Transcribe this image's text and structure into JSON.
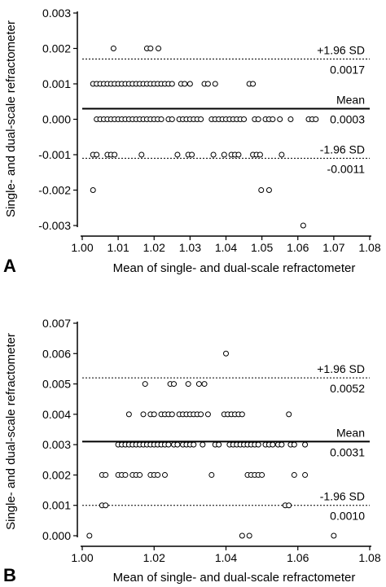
{
  "chart_data": [
    {
      "panel": "A",
      "type": "scatter",
      "xlabel": "Mean of single- and dual-scale refractometer",
      "ylabel": "Single- and dual-scale refractometer",
      "xlim": [
        1.0,
        1.08
      ],
      "ylim": [
        -0.003,
        0.003
      ],
      "x_ticks": [
        "1.00",
        "1.01",
        "1.02",
        "1.03",
        "1.04",
        "1.05",
        "1.06",
        "1.07",
        "1.08"
      ],
      "y_ticks": [
        "-0.003",
        "-0.002",
        "-0.001",
        "0.000",
        "0.001",
        "0.002",
        "0.003"
      ],
      "lines": [
        {
          "name": "+1.96 SD",
          "value_label": "0.0017",
          "y": 0.0017,
          "style": "dotted"
        },
        {
          "name": "Mean",
          "value_label": "0.0003",
          "y": 0.0003,
          "style": "solid"
        },
        {
          "name": "-1.96 SD",
          "value_label": "-0.0011",
          "y": -0.0011,
          "style": "dotted"
        }
      ],
      "points": [
        [
          1.0087,
          0.002
        ],
        [
          1.018,
          0.002
        ],
        [
          1.019,
          0.002
        ],
        [
          1.0212,
          0.002
        ],
        [
          1.003,
          0.001
        ],
        [
          1.004,
          0.001
        ],
        [
          1.005,
          0.001
        ],
        [
          1.006,
          0.001
        ],
        [
          1.007,
          0.001
        ],
        [
          1.008,
          0.001
        ],
        [
          1.009,
          0.001
        ],
        [
          1.01,
          0.001
        ],
        [
          1.011,
          0.001
        ],
        [
          1.012,
          0.001
        ],
        [
          1.013,
          0.001
        ],
        [
          1.014,
          0.001
        ],
        [
          1.015,
          0.001
        ],
        [
          1.016,
          0.001
        ],
        [
          1.017,
          0.001
        ],
        [
          1.018,
          0.001
        ],
        [
          1.019,
          0.001
        ],
        [
          1.02,
          0.001
        ],
        [
          1.021,
          0.001
        ],
        [
          1.022,
          0.001
        ],
        [
          1.023,
          0.001
        ],
        [
          1.024,
          0.001
        ],
        [
          1.025,
          0.001
        ],
        [
          1.0275,
          0.001
        ],
        [
          1.0285,
          0.001
        ],
        [
          1.03,
          0.001
        ],
        [
          1.034,
          0.001
        ],
        [
          1.035,
          0.001
        ],
        [
          1.037,
          0.001
        ],
        [
          1.0465,
          0.001
        ],
        [
          1.0475,
          0.001
        ],
        [
          1.004,
          0.0
        ],
        [
          1.005,
          0.0
        ],
        [
          1.006,
          0.0
        ],
        [
          1.007,
          0.0
        ],
        [
          1.008,
          0.0
        ],
        [
          1.009,
          0.0
        ],
        [
          1.01,
          0.0
        ],
        [
          1.011,
          0.0
        ],
        [
          1.012,
          0.0
        ],
        [
          1.013,
          0.0
        ],
        [
          1.014,
          0.0
        ],
        [
          1.015,
          0.0
        ],
        [
          1.016,
          0.0
        ],
        [
          1.017,
          0.0
        ],
        [
          1.018,
          0.0
        ],
        [
          1.019,
          0.0
        ],
        [
          1.02,
          0.0
        ],
        [
          1.021,
          0.0
        ],
        [
          1.022,
          0.0
        ],
        [
          1.024,
          0.0
        ],
        [
          1.025,
          0.0
        ],
        [
          1.027,
          0.0
        ],
        [
          1.028,
          0.0
        ],
        [
          1.029,
          0.0
        ],
        [
          1.03,
          0.0
        ],
        [
          1.031,
          0.0
        ],
        [
          1.032,
          0.0
        ],
        [
          1.033,
          0.0
        ],
        [
          1.036,
          0.0
        ],
        [
          1.037,
          0.0
        ],
        [
          1.038,
          0.0
        ],
        [
          1.039,
          0.0
        ],
        [
          1.04,
          0.0
        ],
        [
          1.041,
          0.0
        ],
        [
          1.042,
          0.0
        ],
        [
          1.043,
          0.0
        ],
        [
          1.044,
          0.0
        ],
        [
          1.045,
          0.0
        ],
        [
          1.048,
          0.0
        ],
        [
          1.049,
          0.0
        ],
        [
          1.051,
          0.0
        ],
        [
          1.052,
          0.0
        ],
        [
          1.053,
          0.0
        ],
        [
          1.055,
          0.0
        ],
        [
          1.058,
          0.0
        ],
        [
          1.063,
          0.0
        ],
        [
          1.064,
          0.0
        ],
        [
          1.065,
          0.0
        ],
        [
          1.003,
          -0.001
        ],
        [
          1.004,
          -0.001
        ],
        [
          1.007,
          -0.001
        ],
        [
          1.008,
          -0.001
        ],
        [
          1.009,
          -0.001
        ],
        [
          1.0165,
          -0.001
        ],
        [
          1.0265,
          -0.001
        ],
        [
          1.0295,
          -0.001
        ],
        [
          1.0305,
          -0.001
        ],
        [
          1.0365,
          -0.001
        ],
        [
          1.0395,
          -0.001
        ],
        [
          1.0415,
          -0.001
        ],
        [
          1.0425,
          -0.001
        ],
        [
          1.0435,
          -0.001
        ],
        [
          1.0475,
          -0.001
        ],
        [
          1.0485,
          -0.001
        ],
        [
          1.0495,
          -0.001
        ],
        [
          1.0555,
          -0.001
        ],
        [
          1.003,
          -0.002
        ],
        [
          1.0498,
          -0.002
        ],
        [
          1.052,
          -0.002
        ],
        [
          1.0615,
          -0.003
        ]
      ]
    },
    {
      "panel": "B",
      "type": "scatter",
      "xlabel": "Mean of single- and dual-scale refractometer",
      "ylabel": "Single- and dual-scale refractometer",
      "xlim": [
        1.0,
        1.08
      ],
      "ylim": [
        0.0,
        0.007
      ],
      "x_ticks": [
        "1.00",
        "1.02",
        "1.04",
        "1.06",
        "1.08"
      ],
      "y_ticks": [
        "0.000",
        "0.001",
        "0.002",
        "0.003",
        "0.004",
        "0.005",
        "0.006",
        "0.007"
      ],
      "lines": [
        {
          "name": "+1.96 SD",
          "value_label": "0.0052",
          "y": 0.0052,
          "style": "dotted"
        },
        {
          "name": "Mean",
          "value_label": "0.0031",
          "y": 0.0031,
          "style": "solid"
        },
        {
          "name": "-1.96 SD",
          "value_label": "0.0010",
          "y": 0.001,
          "style": "dotted"
        }
      ],
      "points": [
        [
          1.04,
          0.006
        ],
        [
          1.0175,
          0.005
        ],
        [
          1.0245,
          0.005
        ],
        [
          1.0255,
          0.005
        ],
        [
          1.0295,
          0.005
        ],
        [
          1.0325,
          0.005
        ],
        [
          1.034,
          0.005
        ],
        [
          1.013,
          0.004
        ],
        [
          1.017,
          0.004
        ],
        [
          1.019,
          0.004
        ],
        [
          1.02,
          0.004
        ],
        [
          1.022,
          0.004
        ],
        [
          1.023,
          0.004
        ],
        [
          1.024,
          0.004
        ],
        [
          1.025,
          0.004
        ],
        [
          1.027,
          0.004
        ],
        [
          1.028,
          0.004
        ],
        [
          1.029,
          0.004
        ],
        [
          1.03,
          0.004
        ],
        [
          1.031,
          0.004
        ],
        [
          1.032,
          0.004
        ],
        [
          1.033,
          0.004
        ],
        [
          1.035,
          0.004
        ],
        [
          1.0395,
          0.004
        ],
        [
          1.0405,
          0.004
        ],
        [
          1.0415,
          0.004
        ],
        [
          1.0425,
          0.004
        ],
        [
          1.0435,
          0.004
        ],
        [
          1.0445,
          0.004
        ],
        [
          1.0575,
          0.004
        ],
        [
          1.01,
          0.003
        ],
        [
          1.011,
          0.003
        ],
        [
          1.012,
          0.003
        ],
        [
          1.013,
          0.003
        ],
        [
          1.014,
          0.003
        ],
        [
          1.015,
          0.003
        ],
        [
          1.016,
          0.003
        ],
        [
          1.017,
          0.003
        ],
        [
          1.018,
          0.003
        ],
        [
          1.019,
          0.003
        ],
        [
          1.02,
          0.003
        ],
        [
          1.021,
          0.003
        ],
        [
          1.022,
          0.003
        ],
        [
          1.023,
          0.003
        ],
        [
          1.024,
          0.003
        ],
        [
          1.0255,
          0.003
        ],
        [
          1.0265,
          0.003
        ],
        [
          1.028,
          0.003
        ],
        [
          1.029,
          0.003
        ],
        [
          1.03,
          0.003
        ],
        [
          1.031,
          0.003
        ],
        [
          1.0335,
          0.003
        ],
        [
          1.037,
          0.003
        ],
        [
          1.038,
          0.003
        ],
        [
          1.041,
          0.003
        ],
        [
          1.042,
          0.003
        ],
        [
          1.043,
          0.003
        ],
        [
          1.044,
          0.003
        ],
        [
          1.045,
          0.003
        ],
        [
          1.046,
          0.003
        ],
        [
          1.047,
          0.003
        ],
        [
          1.048,
          0.003
        ],
        [
          1.049,
          0.003
        ],
        [
          1.051,
          0.003
        ],
        [
          1.052,
          0.003
        ],
        [
          1.053,
          0.003
        ],
        [
          1.0545,
          0.003
        ],
        [
          1.0555,
          0.003
        ],
        [
          1.058,
          0.003
        ],
        [
          1.059,
          0.003
        ],
        [
          1.062,
          0.003
        ],
        [
          1.0055,
          0.002
        ],
        [
          1.0065,
          0.002
        ],
        [
          1.01,
          0.002
        ],
        [
          1.011,
          0.002
        ],
        [
          1.012,
          0.002
        ],
        [
          1.014,
          0.002
        ],
        [
          1.015,
          0.002
        ],
        [
          1.016,
          0.002
        ],
        [
          1.019,
          0.002
        ],
        [
          1.02,
          0.002
        ],
        [
          1.021,
          0.002
        ],
        [
          1.023,
          0.002
        ],
        [
          1.036,
          0.002
        ],
        [
          1.046,
          0.002
        ],
        [
          1.047,
          0.002
        ],
        [
          1.048,
          0.002
        ],
        [
          1.049,
          0.002
        ],
        [
          1.05,
          0.002
        ],
        [
          1.059,
          0.002
        ],
        [
          1.062,
          0.002
        ],
        [
          1.0055,
          0.001
        ],
        [
          1.0065,
          0.001
        ],
        [
          1.0565,
          0.001
        ],
        [
          1.0575,
          0.001
        ],
        [
          1.002,
          0.0
        ],
        [
          1.0445,
          0.0
        ],
        [
          1.0465,
          0.0
        ],
        [
          1.07,
          0.0
        ]
      ]
    }
  ]
}
